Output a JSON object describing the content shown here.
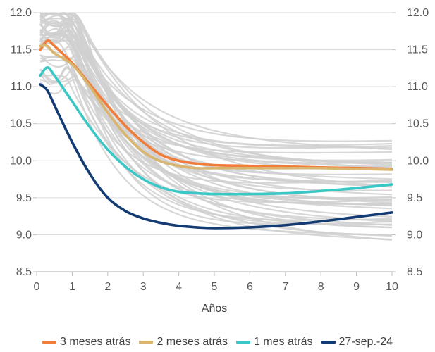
{
  "chart_data": {
    "type": "line",
    "xlabel": "Años",
    "ylabel": "",
    "xlim": [
      0,
      10
    ],
    "ylim": [
      8.5,
      12.0
    ],
    "x_ticks": [
      "0",
      "1",
      "2",
      "3",
      "4",
      "5",
      "6",
      "7",
      "8",
      "9",
      "10"
    ],
    "y_ticks": [
      "8.5",
      "9.0",
      "9.5",
      "10.0",
      "10.5",
      "11.0",
      "11.5",
      "12.0"
    ],
    "secondary_y_axis": true,
    "grid": "horizontal",
    "legend_position": "bottom",
    "background_curves_color": "#d0d0d0",
    "x": [
      0.1,
      0.3,
      0.5,
      1,
      1.5,
      2,
      2.5,
      3,
      3.5,
      4,
      4.5,
      5,
      6,
      7,
      8,
      9,
      10
    ],
    "series": [
      {
        "name": "3 meses atrás",
        "color": "#F07D39",
        "values": [
          11.5,
          11.62,
          11.55,
          11.32,
          11.03,
          10.74,
          10.47,
          10.25,
          10.08,
          10.0,
          9.96,
          9.94,
          9.93,
          9.92,
          9.91,
          9.9,
          9.89
        ]
      },
      {
        "name": "2 meses atrás",
        "color": "#D9B56F",
        "values": [
          11.55,
          11.55,
          11.45,
          11.3,
          11.0,
          10.65,
          10.35,
          10.12,
          9.99,
          9.93,
          9.9,
          9.9,
          9.9,
          9.9,
          9.9,
          9.89,
          9.88
        ]
      },
      {
        "name": "1 mes atrás",
        "color": "#3CC7C7",
        "values": [
          11.15,
          11.26,
          11.15,
          10.8,
          10.45,
          10.15,
          9.92,
          9.75,
          9.64,
          9.58,
          9.56,
          9.55,
          9.55,
          9.56,
          9.59,
          9.63,
          9.68
        ]
      },
      {
        "name": "27-sep.-24",
        "color": "#123B73",
        "values": [
          11.03,
          10.95,
          10.75,
          10.25,
          9.82,
          9.5,
          9.32,
          9.22,
          9.16,
          9.12,
          9.1,
          9.09,
          9.1,
          9.13,
          9.18,
          9.24,
          9.3
        ]
      }
    ]
  }
}
